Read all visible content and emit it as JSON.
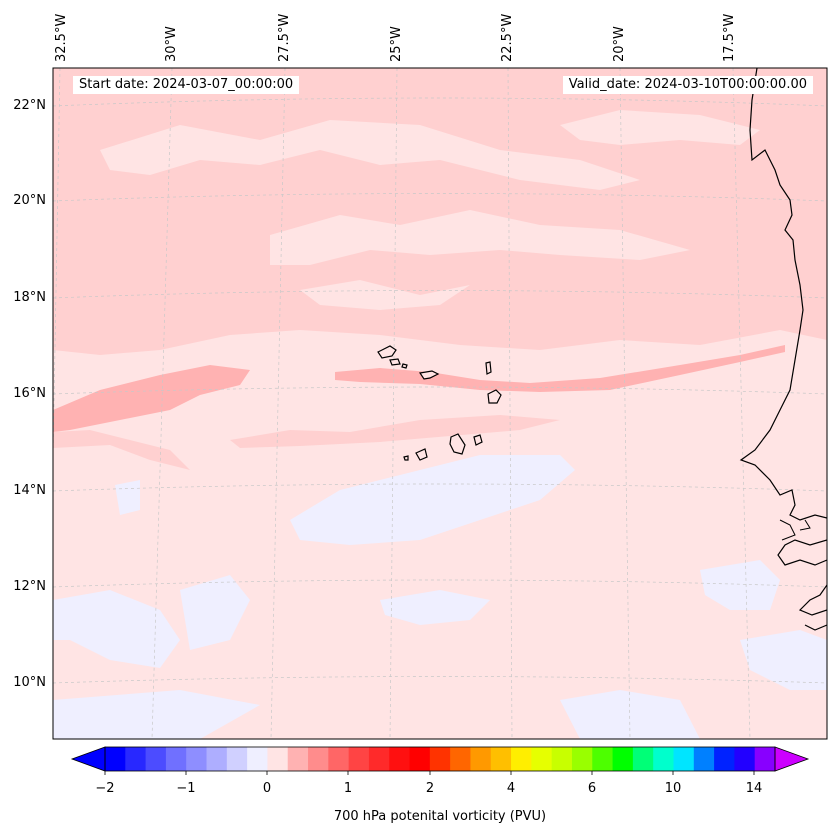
{
  "map": {
    "start_date": "Start date: 2024-03-07_00:00:00",
    "valid_date": "Valid_date: 2024-03-10T00:00:00.00",
    "lon_labels": [
      "32.5°W",
      "30°W",
      "27.5°W",
      "25°W",
      "22.5°W",
      "20°W",
      "17.5°W"
    ],
    "lat_labels": [
      "22°N",
      "20°N",
      "18°N",
      "16°N",
      "14°N",
      "12°N",
      "10°N"
    ],
    "gridlines": true,
    "colors": {
      "pv_0_to_0_25": "#ffe4e4",
      "pv_0_25_to_0_5": "#ffd0d0",
      "pv_0_5_to_0_75": "#ffb2b2",
      "pv_neg_0_25_to_0": "#efefff",
      "coastline": "#000000"
    }
  },
  "colorbar": {
    "title": "700 hPa potenital vorticity (PVU)",
    "tick_labels": [
      "−2",
      "−1",
      "0",
      "1",
      "2",
      "4",
      "6",
      "10",
      "14"
    ],
    "colors": [
      "#0000ff",
      "#2828ff",
      "#4c4cff",
      "#7070ff",
      "#8e8eff",
      "#aeaeff",
      "#d0d0ff",
      "#efefff",
      "#ffe4e4",
      "#ffb2b2",
      "#ff8c8c",
      "#ff6666",
      "#ff4444",
      "#ff2a2a",
      "#ff1010",
      "#ff0000",
      "#ff3300",
      "#ff6600",
      "#ff9900",
      "#ffbf00",
      "#ffee00",
      "#e6ff00",
      "#c8ff00",
      "#99ff00",
      "#4dff00",
      "#00ff00",
      "#00ff77",
      "#00ffcc",
      "#00e5ff",
      "#0080ff",
      "#0022ff",
      "#2200ff",
      "#8800ff"
    ],
    "extend_low_color": "#0000ff",
    "extend_high_color": "#cc00ff"
  }
}
